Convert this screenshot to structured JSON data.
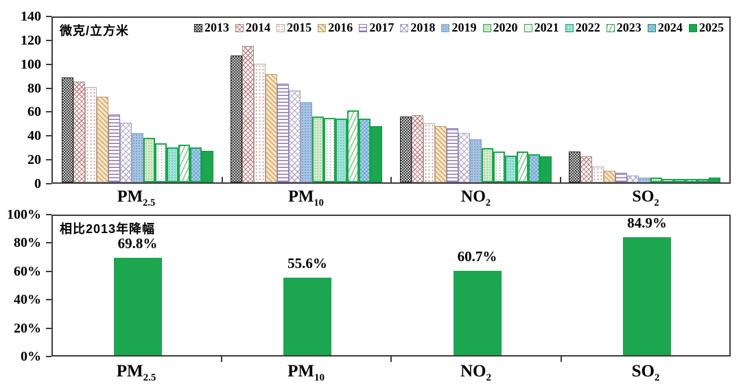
{
  "page": {
    "background": "#ffffff"
  },
  "colors": {
    "accent_green": "#1BA64F",
    "axis": "#3C3C3C",
    "text": "#000000"
  },
  "top_chart": {
    "unit_label": "微克/立方米",
    "y_tick_labels": [
      "140",
      "120",
      "100",
      "80",
      "60",
      "40",
      "20",
      "0"
    ]
  },
  "bottom_chart": {
    "title": "相比2013年降幅",
    "y_tick_labels": [
      "100%",
      "80%",
      "60%",
      "40%",
      "20%",
      "0%"
    ]
  },
  "chart_data": [
    {
      "type": "bar",
      "title": "微克/立方米",
      "categories": [
        "PM2.5",
        "PM10",
        "NO2",
        "SO2"
      ],
      "categories_display": [
        {
          "base": "PM",
          "sub": "2.5"
        },
        {
          "base": "PM",
          "sub": "10"
        },
        {
          "base": "NO",
          "sub": "2"
        },
        {
          "base": "SO",
          "sub": "2"
        }
      ],
      "ylim": [
        0,
        140
      ],
      "y_ticks": [
        0,
        20,
        40,
        60,
        80,
        100,
        120,
        140
      ],
      "grid": false,
      "legend_position": "top-inside",
      "series": [
        {
          "name": "2013",
          "color": "#404040",
          "values": [
            89,
            108,
            56,
            26.5
          ]
        },
        {
          "name": "2014",
          "color": "#C27F7F",
          "values": [
            86,
            116,
            57,
            22
          ]
        },
        {
          "name": "2015",
          "color": "#CC9C94",
          "values": [
            81,
            101,
            50,
            13.5
          ]
        },
        {
          "name": "2016",
          "color": "#D9B583",
          "values": [
            73,
            92,
            48,
            10
          ]
        },
        {
          "name": "2017",
          "color": "#8A76AD",
          "values": [
            58,
            84,
            46,
            8
          ]
        },
        {
          "name": "2018",
          "color": "#AFA9C4",
          "values": [
            51,
            78,
            42,
            6
          ]
        },
        {
          "name": "2019",
          "color": "#9CBBDD",
          "values": [
            42,
            68,
            37,
            4
          ]
        },
        {
          "name": "2020",
          "color": "#A8D29E",
          "values": [
            38,
            56,
            29,
            4
          ]
        },
        {
          "name": "2021",
          "color": "#CFE9DF",
          "values": [
            33,
            55,
            26,
            3
          ]
        },
        {
          "name": "2022",
          "color": "#7FD4C8",
          "values": [
            30,
            54,
            23,
            3
          ]
        },
        {
          "name": "2023",
          "color": "#8FCF9F",
          "values": [
            32,
            61,
            26,
            3
          ]
        },
        {
          "name": "2024",
          "color": "#8FBCDE",
          "values": [
            30,
            54,
            24,
            3
          ]
        },
        {
          "name": "2025",
          "color": "#1BA64F",
          "values": [
            27,
            48,
            22,
            4
          ]
        }
      ]
    },
    {
      "type": "bar",
      "title": "相比2013年降幅",
      "categories": [
        "PM2.5",
        "PM10",
        "NO2",
        "SO2"
      ],
      "values": [
        69.8,
        55.6,
        60.7,
        84.9
      ],
      "value_labels": [
        "69.8%",
        "55.6%",
        "60.7%",
        "84.9%"
      ],
      "ylim": [
        0,
        100
      ],
      "y_ticks": [
        0,
        20,
        40,
        60,
        80,
        100
      ],
      "grid": false,
      "bar_color": "#1BA64F"
    }
  ]
}
